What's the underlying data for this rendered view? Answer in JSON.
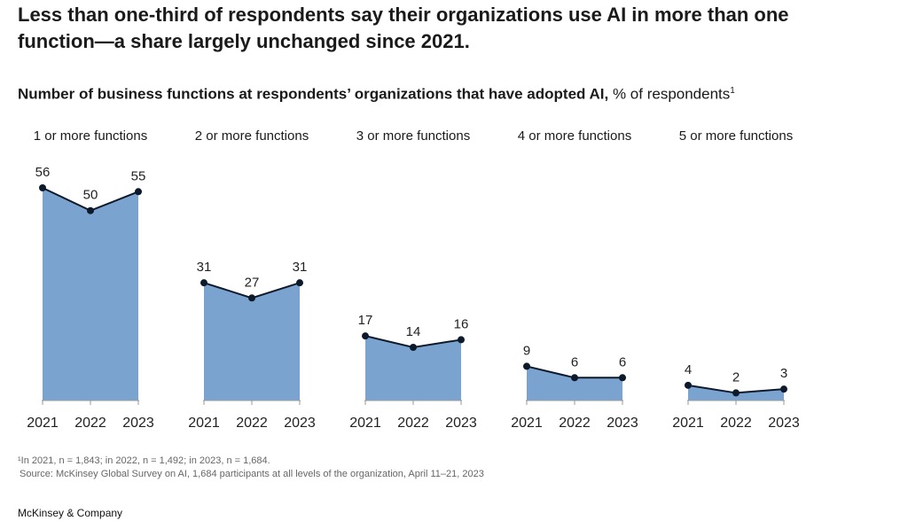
{
  "headline": "Less than one-third of respondents say their organizations use AI in more than one function—a share largely unchanged since 2021.",
  "subhead": {
    "bold": "Number of business functions at respondents’ organizations that have adopted AI,",
    "normal": " % of respondents",
    "sup": "1"
  },
  "chart_data": {
    "type": "area",
    "x": [
      "2021",
      "2022",
      "2023"
    ],
    "series": [
      {
        "name": "1 or more functions",
        "values": [
          56,
          50,
          55
        ]
      },
      {
        "name": "2 or more functions",
        "values": [
          31,
          27,
          31
        ]
      },
      {
        "name": "3 or more functions",
        "values": [
          17,
          14,
          16
        ]
      },
      {
        "name": "4 or more functions",
        "values": [
          9,
          6,
          6
        ]
      },
      {
        "name": "5 or more functions",
        "values": [
          4,
          2,
          3
        ]
      }
    ],
    "ylabel": "% of respondents",
    "ylim": [
      0,
      56
    ],
    "grid": false,
    "colors": {
      "fill": "#7ba3cf",
      "line": "#0d1a2b",
      "baseline": "#999999"
    }
  },
  "footnote": {
    "note": "¹In 2021, n = 1,843; in 2022, n = 1,492; in 2023, n = 1,684.",
    "source": "Source: McKinsey Global Survey on AI, 1,684 participants at all levels of the organization, April 11–21, 2023"
  },
  "brand": "McKinsey & Company"
}
